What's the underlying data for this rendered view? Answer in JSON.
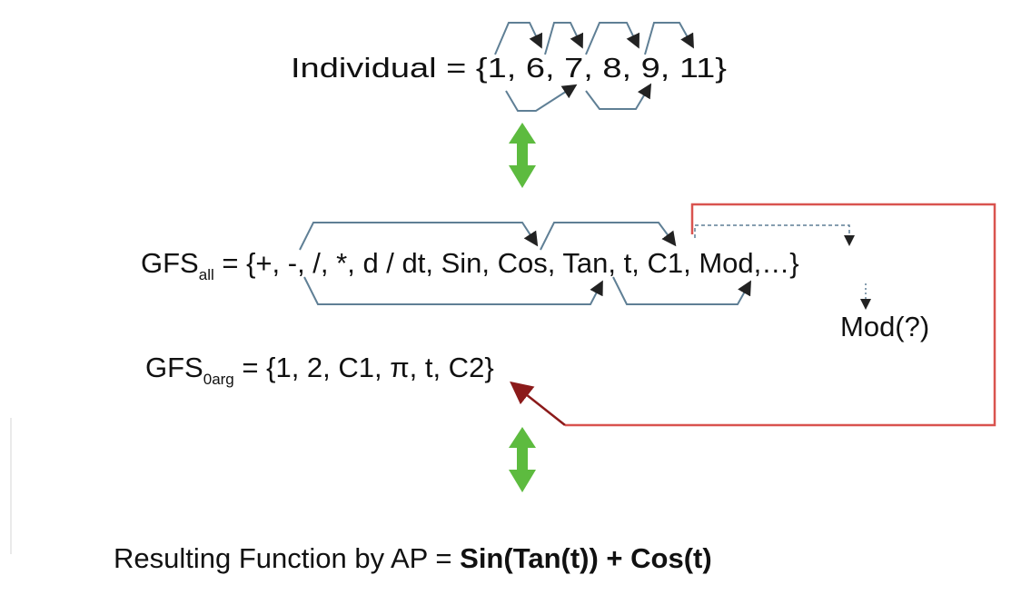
{
  "individual": {
    "text": "Individual = {1, 6, 7, 8, 9, 11}"
  },
  "gfs_all": {
    "name": "GFS",
    "subscript": "all",
    "rest": " = {+, -, /, *, d / dt, Sin, Cos, Tan, t, C1, Mod,…}",
    "note": "Mod(?)"
  },
  "gfs_0arg": {
    "name": "GFS",
    "subscript": "0arg",
    "rest": " = {1, 2, C1, π, t, C2}"
  },
  "result": {
    "label": "Resulting Function by AP = ",
    "function": "Sin(Tan(t)) + Cos(t)"
  }
}
